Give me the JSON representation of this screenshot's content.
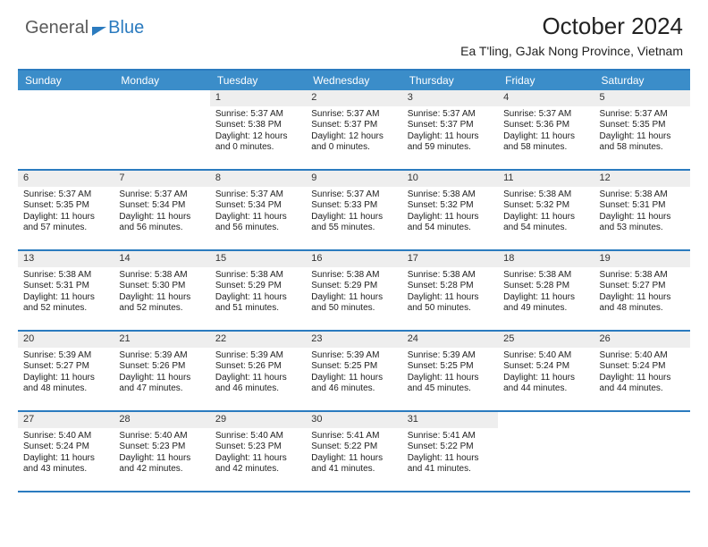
{
  "brand": {
    "general": "General",
    "blue": "Blue"
  },
  "title": "October 2024",
  "location": "Ea T'ling, GJak Nong Province, Vietnam",
  "colors": {
    "header_bar": "#3b8dc9",
    "rule": "#2b7bbf",
    "daynum_bg": "#eeeeee",
    "text": "#222222",
    "logo_gray": "#5a5a5a",
    "logo_blue": "#2b7bbf",
    "background": "#ffffff"
  },
  "day_headers": [
    "Sunday",
    "Monday",
    "Tuesday",
    "Wednesday",
    "Thursday",
    "Friday",
    "Saturday"
  ],
  "weeks": [
    [
      {
        "n": "",
        "sr": "",
        "ss": "",
        "d1": "",
        "d2": "",
        "empty": true
      },
      {
        "n": "",
        "sr": "",
        "ss": "",
        "d1": "",
        "d2": "",
        "empty": true
      },
      {
        "n": "1",
        "sr": "Sunrise: 5:37 AM",
        "ss": "Sunset: 5:38 PM",
        "d1": "Daylight: 12 hours",
        "d2": "and 0 minutes."
      },
      {
        "n": "2",
        "sr": "Sunrise: 5:37 AM",
        "ss": "Sunset: 5:37 PM",
        "d1": "Daylight: 12 hours",
        "d2": "and 0 minutes."
      },
      {
        "n": "3",
        "sr": "Sunrise: 5:37 AM",
        "ss": "Sunset: 5:37 PM",
        "d1": "Daylight: 11 hours",
        "d2": "and 59 minutes."
      },
      {
        "n": "4",
        "sr": "Sunrise: 5:37 AM",
        "ss": "Sunset: 5:36 PM",
        "d1": "Daylight: 11 hours",
        "d2": "and 58 minutes."
      },
      {
        "n": "5",
        "sr": "Sunrise: 5:37 AM",
        "ss": "Sunset: 5:35 PM",
        "d1": "Daylight: 11 hours",
        "d2": "and 58 minutes."
      }
    ],
    [
      {
        "n": "6",
        "sr": "Sunrise: 5:37 AM",
        "ss": "Sunset: 5:35 PM",
        "d1": "Daylight: 11 hours",
        "d2": "and 57 minutes."
      },
      {
        "n": "7",
        "sr": "Sunrise: 5:37 AM",
        "ss": "Sunset: 5:34 PM",
        "d1": "Daylight: 11 hours",
        "d2": "and 56 minutes."
      },
      {
        "n": "8",
        "sr": "Sunrise: 5:37 AM",
        "ss": "Sunset: 5:34 PM",
        "d1": "Daylight: 11 hours",
        "d2": "and 56 minutes."
      },
      {
        "n": "9",
        "sr": "Sunrise: 5:37 AM",
        "ss": "Sunset: 5:33 PM",
        "d1": "Daylight: 11 hours",
        "d2": "and 55 minutes."
      },
      {
        "n": "10",
        "sr": "Sunrise: 5:38 AM",
        "ss": "Sunset: 5:32 PM",
        "d1": "Daylight: 11 hours",
        "d2": "and 54 minutes."
      },
      {
        "n": "11",
        "sr": "Sunrise: 5:38 AM",
        "ss": "Sunset: 5:32 PM",
        "d1": "Daylight: 11 hours",
        "d2": "and 54 minutes."
      },
      {
        "n": "12",
        "sr": "Sunrise: 5:38 AM",
        "ss": "Sunset: 5:31 PM",
        "d1": "Daylight: 11 hours",
        "d2": "and 53 minutes."
      }
    ],
    [
      {
        "n": "13",
        "sr": "Sunrise: 5:38 AM",
        "ss": "Sunset: 5:31 PM",
        "d1": "Daylight: 11 hours",
        "d2": "and 52 minutes."
      },
      {
        "n": "14",
        "sr": "Sunrise: 5:38 AM",
        "ss": "Sunset: 5:30 PM",
        "d1": "Daylight: 11 hours",
        "d2": "and 52 minutes."
      },
      {
        "n": "15",
        "sr": "Sunrise: 5:38 AM",
        "ss": "Sunset: 5:29 PM",
        "d1": "Daylight: 11 hours",
        "d2": "and 51 minutes."
      },
      {
        "n": "16",
        "sr": "Sunrise: 5:38 AM",
        "ss": "Sunset: 5:29 PM",
        "d1": "Daylight: 11 hours",
        "d2": "and 50 minutes."
      },
      {
        "n": "17",
        "sr": "Sunrise: 5:38 AM",
        "ss": "Sunset: 5:28 PM",
        "d1": "Daylight: 11 hours",
        "d2": "and 50 minutes."
      },
      {
        "n": "18",
        "sr": "Sunrise: 5:38 AM",
        "ss": "Sunset: 5:28 PM",
        "d1": "Daylight: 11 hours",
        "d2": "and 49 minutes."
      },
      {
        "n": "19",
        "sr": "Sunrise: 5:38 AM",
        "ss": "Sunset: 5:27 PM",
        "d1": "Daylight: 11 hours",
        "d2": "and 48 minutes."
      }
    ],
    [
      {
        "n": "20",
        "sr": "Sunrise: 5:39 AM",
        "ss": "Sunset: 5:27 PM",
        "d1": "Daylight: 11 hours",
        "d2": "and 48 minutes."
      },
      {
        "n": "21",
        "sr": "Sunrise: 5:39 AM",
        "ss": "Sunset: 5:26 PM",
        "d1": "Daylight: 11 hours",
        "d2": "and 47 minutes."
      },
      {
        "n": "22",
        "sr": "Sunrise: 5:39 AM",
        "ss": "Sunset: 5:26 PM",
        "d1": "Daylight: 11 hours",
        "d2": "and 46 minutes."
      },
      {
        "n": "23",
        "sr": "Sunrise: 5:39 AM",
        "ss": "Sunset: 5:25 PM",
        "d1": "Daylight: 11 hours",
        "d2": "and 46 minutes."
      },
      {
        "n": "24",
        "sr": "Sunrise: 5:39 AM",
        "ss": "Sunset: 5:25 PM",
        "d1": "Daylight: 11 hours",
        "d2": "and 45 minutes."
      },
      {
        "n": "25",
        "sr": "Sunrise: 5:40 AM",
        "ss": "Sunset: 5:24 PM",
        "d1": "Daylight: 11 hours",
        "d2": "and 44 minutes."
      },
      {
        "n": "26",
        "sr": "Sunrise: 5:40 AM",
        "ss": "Sunset: 5:24 PM",
        "d1": "Daylight: 11 hours",
        "d2": "and 44 minutes."
      }
    ],
    [
      {
        "n": "27",
        "sr": "Sunrise: 5:40 AM",
        "ss": "Sunset: 5:24 PM",
        "d1": "Daylight: 11 hours",
        "d2": "and 43 minutes."
      },
      {
        "n": "28",
        "sr": "Sunrise: 5:40 AM",
        "ss": "Sunset: 5:23 PM",
        "d1": "Daylight: 11 hours",
        "d2": "and 42 minutes."
      },
      {
        "n": "29",
        "sr": "Sunrise: 5:40 AM",
        "ss": "Sunset: 5:23 PM",
        "d1": "Daylight: 11 hours",
        "d2": "and 42 minutes."
      },
      {
        "n": "30",
        "sr": "Sunrise: 5:41 AM",
        "ss": "Sunset: 5:22 PM",
        "d1": "Daylight: 11 hours",
        "d2": "and 41 minutes."
      },
      {
        "n": "31",
        "sr": "Sunrise: 5:41 AM",
        "ss": "Sunset: 5:22 PM",
        "d1": "Daylight: 11 hours",
        "d2": "and 41 minutes."
      },
      {
        "n": "",
        "sr": "",
        "ss": "",
        "d1": "",
        "d2": "",
        "empty": true
      },
      {
        "n": "",
        "sr": "",
        "ss": "",
        "d1": "",
        "d2": "",
        "empty": true
      }
    ]
  ]
}
